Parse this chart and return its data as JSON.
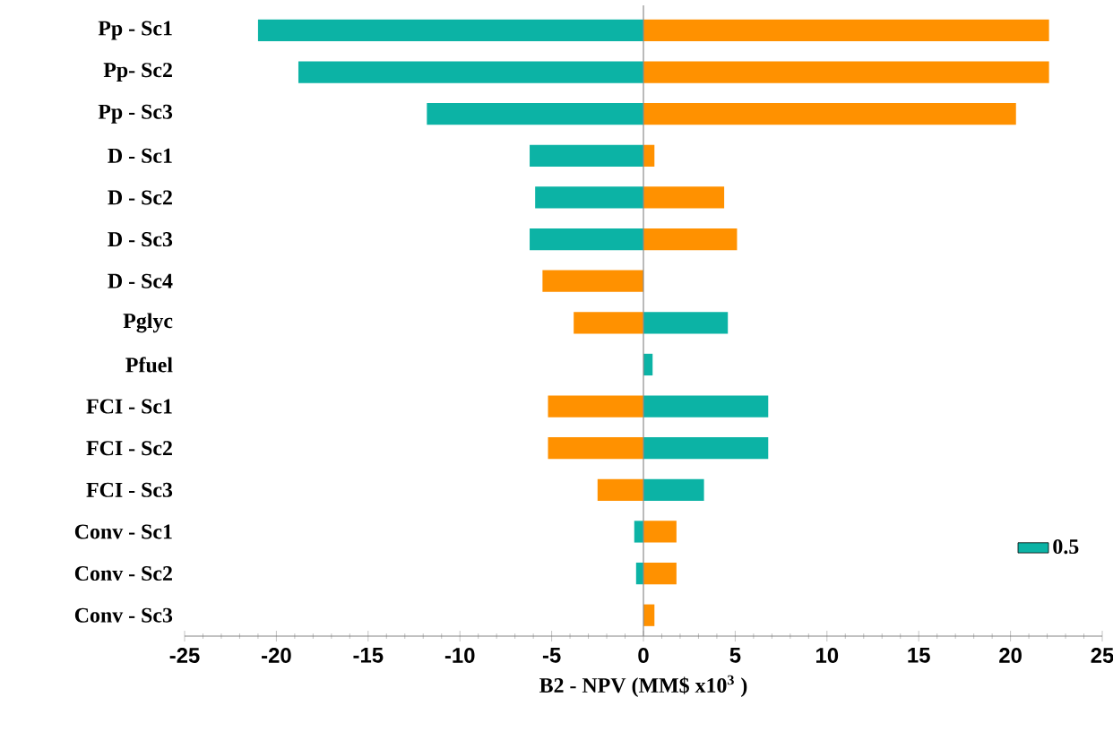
{
  "chart_data": {
    "type": "bar",
    "orientation": "horizontal",
    "xlabel": "B2 - NPV (MM$ x10$^{3}$ )",
    "categories": [
      "Pp - Sc1",
      "Pp- Sc2",
      "Pp - Sc3",
      "D - Sc1",
      "D - Sc2",
      "D - Sc3",
      "D - Sc4",
      "Pglyc",
      "Pfuel",
      "FCI - Sc1",
      "FCI - Sc2",
      "FCI - Sc3",
      "Conv - Sc1",
      "Conv - Sc2",
      "Conv - Sc3"
    ],
    "series": [
      {
        "name": "0.5",
        "color": "#0cb3a5",
        "values": [
          -21,
          -18.8,
          -11.8,
          -6.2,
          -5.9,
          -6.2,
          null,
          4.6,
          0.5,
          6.8,
          6.8,
          3.3,
          -0.5,
          -0.4,
          null
        ]
      },
      {
        "color": "#ff9100",
        "values": [
          22.1,
          22.1,
          20.3,
          0.6,
          4.4,
          5.1,
          -5.5,
          -3.8,
          null,
          -5.2,
          -5.2,
          -2.5,
          1.8,
          1.8,
          0.6
        ]
      }
    ],
    "xlim": [
      -25,
      25
    ],
    "xticks": [
      -25,
      -20,
      -15,
      -10,
      -5,
      0,
      5,
      10,
      15,
      20,
      25
    ],
    "stacked": true,
    "ref_lines": [
      {
        "axis": "x",
        "value": 0,
        "color": "#8c8c8c"
      }
    ],
    "legend": "bottom right"
  }
}
